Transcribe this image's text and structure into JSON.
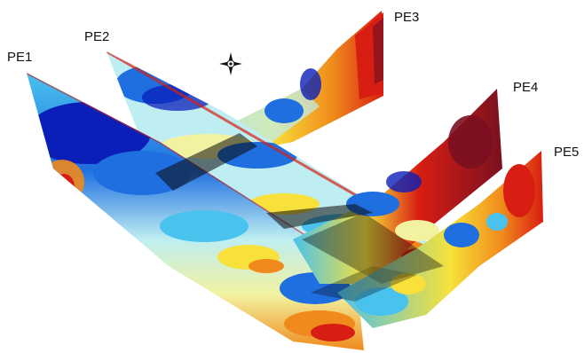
{
  "labels": {
    "pe1": "PE1",
    "pe2": "PE2",
    "pe3": "PE3",
    "pe4": "PE4",
    "pe5": "PE5"
  },
  "colors": {
    "deep_blue": "#0a1fb8",
    "blue": "#1f6fe0",
    "cyan": "#49c2ee",
    "pale_cyan": "#bfeef2",
    "pale_yellow": "#f2f2a0",
    "yellow": "#f7e13a",
    "orange": "#f08a1c",
    "red": "#d81e12",
    "dark_red": "#7a1020"
  },
  "icons": {
    "compass": "compass-rose-icon"
  }
}
